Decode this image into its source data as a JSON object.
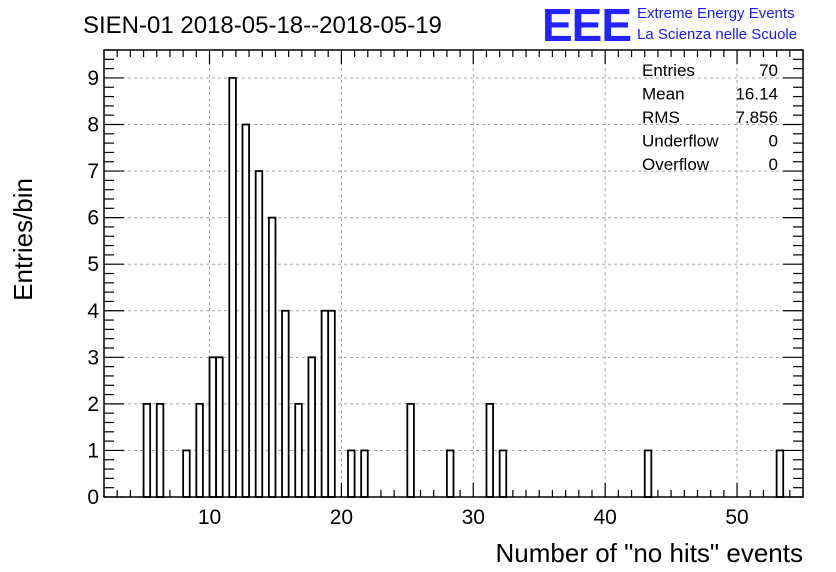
{
  "title": "SIEN-01 2018-05-18--2018-05-19",
  "logo": {
    "mark": "EEE",
    "line1": "Extreme Energy Events",
    "line2": "La Scienza nelle Scuole",
    "color": "#2323ff"
  },
  "stats": [
    {
      "label": "Entries",
      "value": "70"
    },
    {
      "label": "Mean",
      "value": "16.14"
    },
    {
      "label": "RMS",
      "value": "7.856"
    },
    {
      "label": "Underflow",
      "value": "0"
    },
    {
      "label": "Overflow",
      "value": "0"
    }
  ],
  "chart_data": {
    "type": "bar",
    "histogram": true,
    "xlabel": "Number of \"no hits\" events",
    "ylabel": "Entries/bin",
    "xlim": [
      2,
      55
    ],
    "ylim": [
      0,
      9.6
    ],
    "bin_width": 0.5,
    "xticks": [
      10,
      20,
      30,
      40,
      50
    ],
    "yticks": [
      0,
      1,
      2,
      3,
      4,
      5,
      6,
      7,
      8,
      9
    ],
    "grid": true,
    "bars": [
      {
        "x": 5,
        "value": 2
      },
      {
        "x": 6,
        "value": 2
      },
      {
        "x": 8,
        "value": 1
      },
      {
        "x": 9,
        "value": 2
      },
      {
        "x": 10,
        "value": 3
      },
      {
        "x": 10.5,
        "value": 3
      },
      {
        "x": 11.5,
        "value": 9
      },
      {
        "x": 12.5,
        "value": 8
      },
      {
        "x": 13.5,
        "value": 7
      },
      {
        "x": 14.5,
        "value": 6
      },
      {
        "x": 15.5,
        "value": 4
      },
      {
        "x": 16.5,
        "value": 2
      },
      {
        "x": 17.5,
        "value": 3
      },
      {
        "x": 18.5,
        "value": 4
      },
      {
        "x": 19,
        "value": 4
      },
      {
        "x": 20.5,
        "value": 1
      },
      {
        "x": 21.5,
        "value": 1
      },
      {
        "x": 25,
        "value": 2
      },
      {
        "x": 28,
        "value": 1
      },
      {
        "x": 31,
        "value": 2
      },
      {
        "x": 32,
        "value": 1
      },
      {
        "x": 43,
        "value": 1
      },
      {
        "x": 53,
        "value": 1
      }
    ]
  }
}
